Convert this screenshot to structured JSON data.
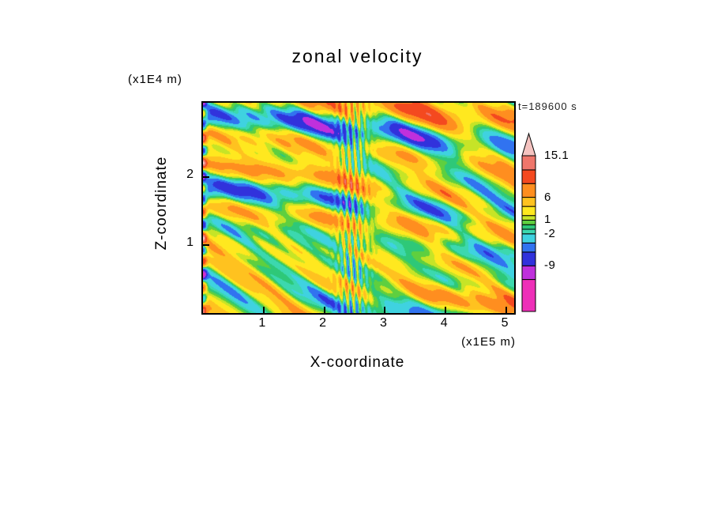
{
  "chart_data": {
    "type": "heatmap",
    "title": "zonal velocity",
    "timestamp": "t=189600 s",
    "x_axis": {
      "label": "X-coordinate",
      "unit": "(x1E5 m)",
      "ticks": [
        1,
        2,
        3,
        4,
        5
      ],
      "range": [
        0,
        5.13
      ]
    },
    "y_axis": {
      "label": "Z-coordinate",
      "unit": "(x1E4 m)",
      "ticks": [
        1,
        2
      ],
      "range": [
        0,
        3.1
      ]
    },
    "colorbar": {
      "vmin": -19,
      "vmax": 15.1,
      "levels": [
        -12,
        -9,
        -6,
        -4,
        -2,
        -1,
        0,
        1,
        2,
        4,
        6,
        9,
        12
      ],
      "colors": [
        "#ee2fb8",
        "#bf30dc",
        "#3132dc",
        "#3173f0",
        "#3fd2e0",
        "#3cd8ae",
        "#2ec878",
        "#5fcf3f",
        "#c6e427",
        "#ffe81f",
        "#ffc21f",
        "#ff8e1f",
        "#f4491f",
        "#ef766b",
        "#f5c3c0"
      ],
      "labels": [
        {
          "text": "15.1",
          "value": 15.1
        },
        {
          "text": "6",
          "value": 6
        },
        {
          "text": "1",
          "value": 1
        },
        {
          "text": "-2",
          "value": -2
        },
        {
          "text": "-9",
          "value": -9
        }
      ]
    },
    "field": {
      "seed": 20,
      "offset": 1.4,
      "waves": 12,
      "amp": 2.05,
      "fx_range": [
        0.4,
        4.2
      ],
      "fy_range": [
        0.6,
        6.5
      ],
      "detail_waves": 6,
      "detail_amp": 0.6,
      "detail_f": [
        6,
        13
      ],
      "streak": {
        "x_center": 0.478,
        "x_sigma": 0.045,
        "freq": 52,
        "y_freq": 2.5,
        "amp": 4.2
      },
      "edge": {
        "sigma": 0.011,
        "y_freq": 8.5,
        "amp": 9.5
      }
    }
  }
}
